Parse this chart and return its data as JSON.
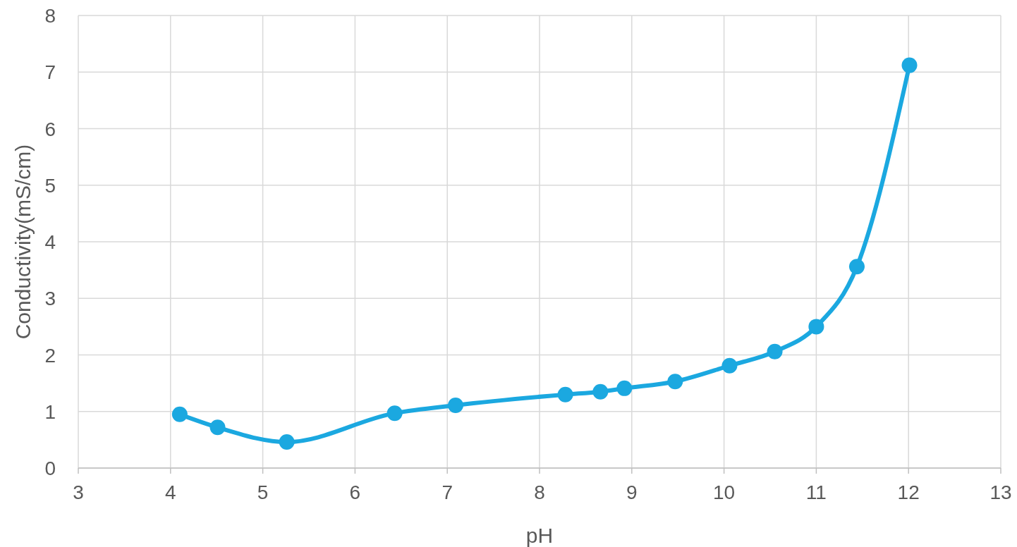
{
  "chart_data": {
    "type": "line",
    "xlabel": "pH",
    "ylabel": "Conductivity(mS/cm)",
    "x": [
      4.1,
      4.51,
      5.26,
      6.43,
      7.09,
      8.28,
      8.66,
      8.92,
      9.47,
      10.06,
      10.55,
      11.0,
      11.44,
      12.01
    ],
    "series": [
      {
        "color": "#1ba8e0",
        "values": [
          0.95,
          0.72,
          0.46,
          0.97,
          1.11,
          1.3,
          1.35,
          1.41,
          1.53,
          1.81,
          2.06,
          2.5,
          3.56,
          7.12
        ]
      }
    ],
    "xlim": [
      3,
      13
    ],
    "xticks": [
      3,
      4,
      5,
      6,
      7,
      8,
      9,
      10,
      11,
      12,
      13
    ],
    "ylim": [
      0,
      8
    ],
    "yticks": [
      0,
      1,
      2,
      3,
      4,
      5,
      6,
      7,
      8
    ],
    "grid": true,
    "marker": "circle",
    "line_style": "solid"
  }
}
